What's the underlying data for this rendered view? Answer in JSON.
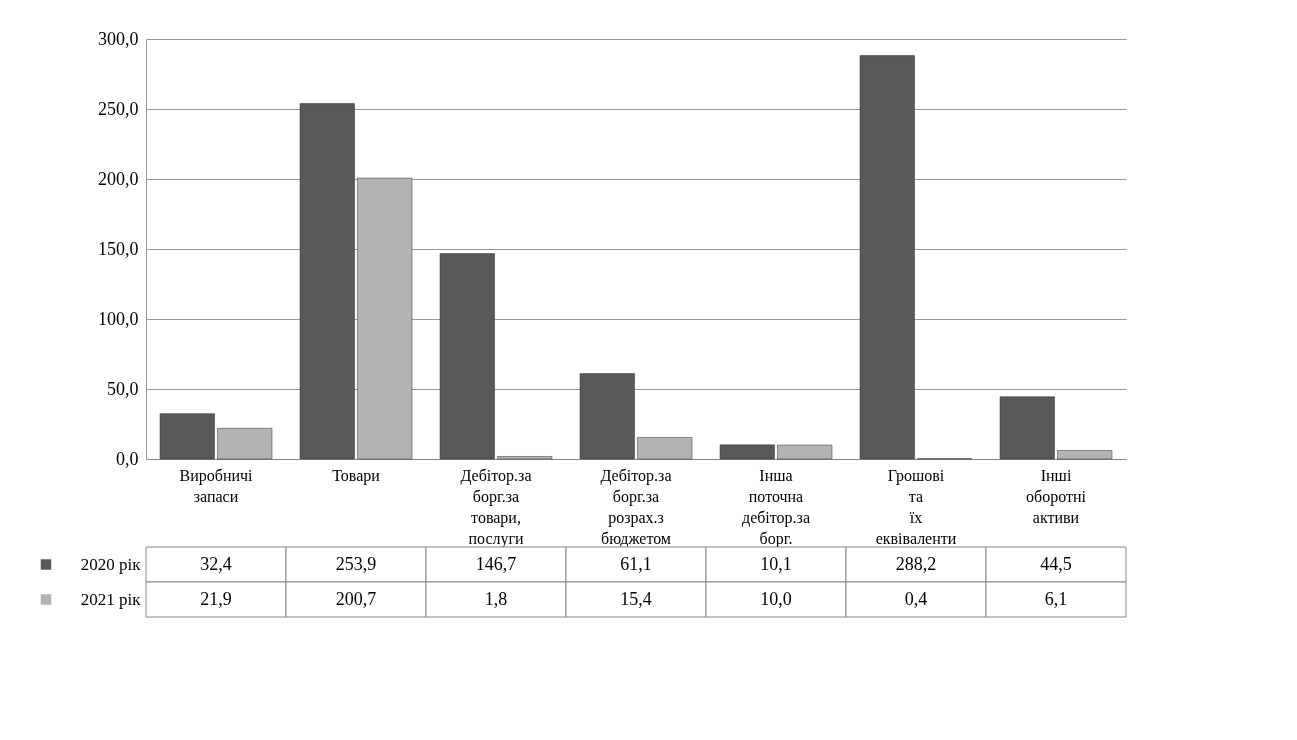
{
  "chart_data": {
    "type": "bar",
    "categories": [
      "Виробничі запаси",
      "Товари",
      "Дебітор.за борг.за товари, послуги",
      "Дебітор.за борг.за розрах.з бюджетом",
      "Інша поточна дебітор.за борг.",
      "Грошові та їх еквіваленти",
      "Інші оборотні активи"
    ],
    "series": [
      {
        "name": "2020 рік",
        "color": "#595959",
        "values": [
          32.4,
          253.9,
          146.7,
          61.1,
          10.1,
          288.2,
          44.5
        ],
        "value_labels": [
          "32,4",
          "253,9",
          "146,7",
          "61,1",
          "10,1",
          "288,2",
          "44,5"
        ]
      },
      {
        "name": "2021 рік",
        "color": "#b3b3b3",
        "values": [
          21.9,
          200.7,
          1.8,
          15.4,
          10.0,
          0.4,
          6.1
        ],
        "value_labels": [
          "21,9",
          "200,7",
          "1,8",
          "15,4",
          "10,0",
          "0,4",
          "6,1"
        ]
      }
    ],
    "ylim": [
      0,
      300
    ],
    "yticks": [
      {
        "value": 0,
        "label": "0,0"
      },
      {
        "value": 50,
        "label": "50,0"
      },
      {
        "value": 100,
        "label": "100,0"
      },
      {
        "value": 150,
        "label": "150,0"
      },
      {
        "value": 200,
        "label": "200,0"
      },
      {
        "value": 250,
        "label": "250,0"
      },
      {
        "value": 300,
        "label": "300,0"
      }
    ],
    "grid": "y",
    "legend": "bottom"
  }
}
